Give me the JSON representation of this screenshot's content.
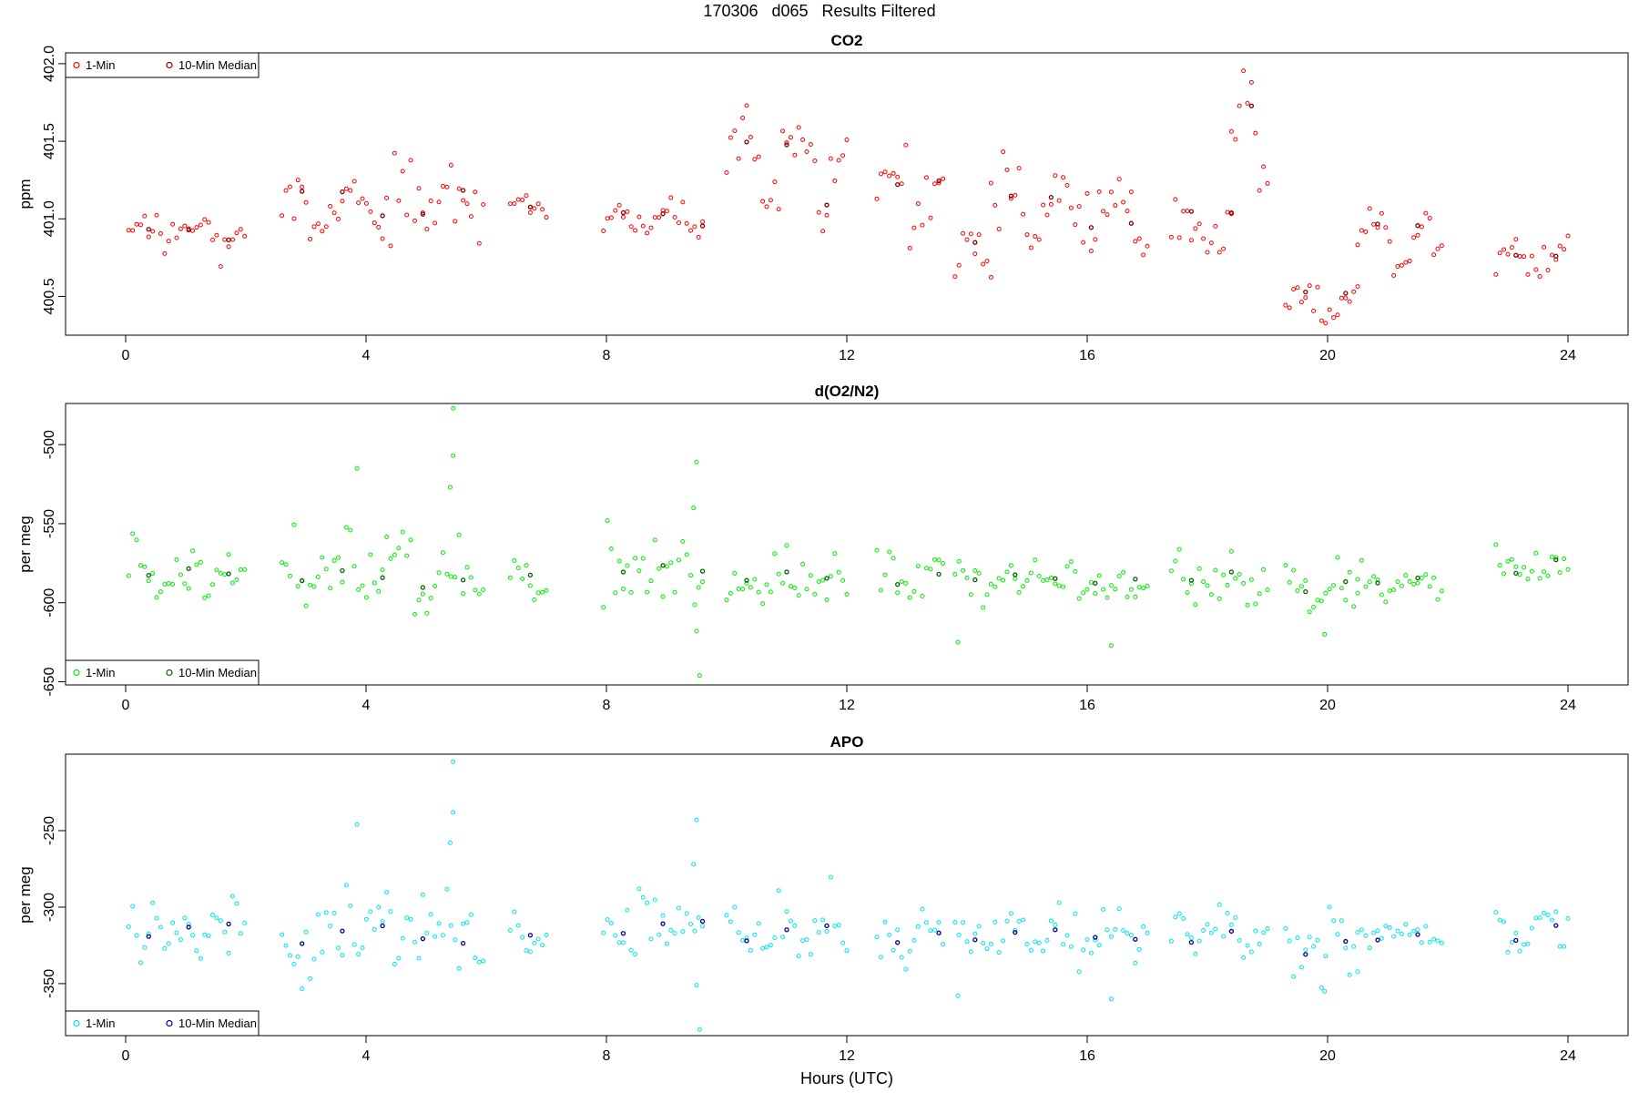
{
  "title": "170306   d065   Results Filtered",
  "xlabel": "Hours (UTC)",
  "chart_data": [
    {
      "type": "scatter",
      "title": "CO2",
      "ylabel": "ppm",
      "xlim": [
        -1.0,
        25.0
      ],
      "ylim": [
        400.25,
        402.07
      ],
      "xticks": [
        0,
        4,
        8,
        12,
        16,
        20,
        24
      ],
      "yticks": [
        400.5,
        401.0,
        401.5,
        402.0
      ],
      "ytick_labels": [
        "400.5",
        "401.0",
        "401.5",
        "402.0"
      ],
      "legend": {
        "position": "top-left",
        "entries": [
          "1-Min",
          "10-Min Median"
        ]
      },
      "colors": {
        "one_min": "#ff0000",
        "median": "#8b0000"
      },
      "segments": [
        [
          0.05,
          1.98,
          400.9,
          0.05,
          0.06
        ],
        [
          2.6,
          5.95,
          401.1,
          0.12,
          0.1
        ],
        [
          6.4,
          7.0,
          401.05,
          0.04,
          0.03
        ],
        [
          7.95,
          9.6,
          401.0,
          0.06,
          0.05
        ],
        [
          10.0,
          12.0,
          401.3,
          0.3,
          0.12
        ],
        [
          12.5,
          13.6,
          401.1,
          0.2,
          0.1
        ],
        [
          13.8,
          14.4,
          400.75,
          0.15,
          0.08
        ],
        [
          14.4,
          17.0,
          401.05,
          0.15,
          0.12
        ],
        [
          17.4,
          18.4,
          400.95,
          0.15,
          0.08
        ],
        [
          18.4,
          19.0,
          401.5,
          0.35,
          0.12
        ],
        [
          19.3,
          20.5,
          400.45,
          0.12,
          0.06
        ],
        [
          20.5,
          21.9,
          400.85,
          0.18,
          0.08
        ],
        [
          22.8,
          24.0,
          400.7,
          0.1,
          0.06
        ]
      ]
    },
    {
      "type": "scatter",
      "title": "d(O2/N2)",
      "ylabel": "per meg",
      "xlim": [
        -1.0,
        25.0
      ],
      "ylim": [
        -652,
        -474
      ],
      "xticks": [
        0,
        4,
        8,
        12,
        16,
        20,
        24
      ],
      "yticks": [
        -650,
        -600,
        -550,
        -500
      ],
      "ytick_labels": [
        "-650",
        "-600",
        "-550",
        "-500"
      ],
      "legend": {
        "position": "bottom-left",
        "entries": [
          "1-Min",
          "10-Min Median"
        ]
      },
      "colors": {
        "one_min": "#00ee00",
        "median": "#006400"
      },
      "segments": [
        [
          0.05,
          1.98,
          -582,
          4,
          9
        ],
        [
          2.6,
          5.95,
          -585,
          6,
          13
        ],
        [
          6.4,
          7.0,
          -582,
          3,
          6
        ],
        [
          7.95,
          9.6,
          -580,
          4,
          12
        ],
        [
          10.0,
          12.0,
          -585,
          5,
          10
        ],
        [
          12.5,
          13.6,
          -587,
          6,
          8
        ],
        [
          13.8,
          17.0,
          -585,
          3,
          7
        ],
        [
          17.4,
          19.0,
          -585,
          5,
          8
        ],
        [
          19.3,
          20.5,
          -592,
          6,
          8
        ],
        [
          20.5,
          21.9,
          -587,
          3,
          4
        ],
        [
          22.8,
          24.0,
          -580,
          8,
          6
        ]
      ],
      "outliers": [
        [
          5.45,
          -477
        ],
        [
          5.45,
          -507
        ],
        [
          5.4,
          -527
        ],
        [
          3.85,
          -515
        ],
        [
          9.5,
          -511
        ],
        [
          9.45,
          -540
        ],
        [
          9.55,
          -646
        ],
        [
          9.5,
          -618
        ],
        [
          13.85,
          -625
        ],
        [
          16.4,
          -627
        ],
        [
          19.95,
          -620
        ]
      ]
    },
    {
      "type": "scatter",
      "title": "APO",
      "ylabel": "per meg",
      "xlim": [
        -1.0,
        25.0
      ],
      "ylim": [
        -384,
        -200
      ],
      "xticks": [
        0,
        4,
        8,
        12,
        16,
        20,
        24
      ],
      "yticks": [
        -350,
        -300,
        -250
      ],
      "ytick_labels": [
        "-350",
        "-300",
        "-250"
      ],
      "legend": {
        "position": "bottom-left",
        "entries": [
          "1-Min",
          "10-Min Median"
        ]
      },
      "colors": {
        "one_min": "#00e5ee",
        "median": "#00008b"
      },
      "segments": [
        [
          0.05,
          1.98,
          -315,
          5,
          10
        ],
        [
          2.6,
          5.95,
          -318,
          7,
          13
        ],
        [
          6.4,
          7.0,
          -315,
          4,
          7
        ],
        [
          7.95,
          9.6,
          -313,
          5,
          12
        ],
        [
          10.0,
          12.0,
          -317,
          6,
          10
        ],
        [
          12.5,
          13.6,
          -318,
          6,
          9
        ],
        [
          13.8,
          17.0,
          -318,
          4,
          8
        ],
        [
          17.4,
          19.0,
          -318,
          6,
          9
        ],
        [
          19.3,
          20.5,
          -325,
          7,
          9
        ],
        [
          20.5,
          21.9,
          -319,
          3,
          4
        ],
        [
          22.8,
          24.0,
          -315,
          8,
          6
        ]
      ],
      "outliers": [
        [
          5.45,
          -205
        ],
        [
          5.45,
          -238
        ],
        [
          5.4,
          -258
        ],
        [
          3.85,
          -246
        ],
        [
          9.5,
          -243
        ],
        [
          9.45,
          -272
        ],
        [
          9.55,
          -380
        ],
        [
          9.5,
          -351
        ],
        [
          13.85,
          -358
        ],
        [
          16.4,
          -360
        ],
        [
          19.95,
          -355
        ]
      ]
    }
  ]
}
